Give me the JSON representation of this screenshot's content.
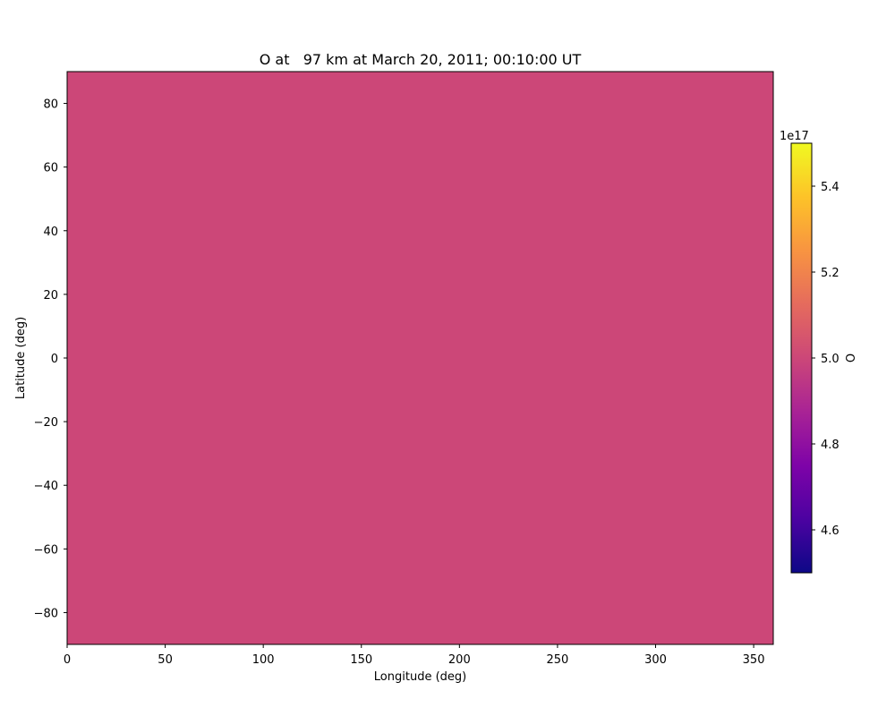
{
  "chart_data": {
    "type": "heatmap",
    "title": "O at   97 km at March 20, 2011; 00:10:00 UT",
    "xlabel": "Longitude (deg)",
    "ylabel": "Latitude (deg)",
    "xlim": [
      0,
      360
    ],
    "ylim": [
      -90,
      90
    ],
    "x_ticks": [
      0,
      50,
      100,
      150,
      200,
      250,
      300,
      350
    ],
    "y_ticks": [
      80,
      60,
      40,
      20,
      0,
      -20,
      -40,
      -60,
      -80
    ],
    "y_tick_labels": [
      "80",
      "60",
      "40",
      "20",
      "0",
      "−20",
      "−40",
      "−60",
      "−80"
    ],
    "field_value": 5e+17,
    "field_color": "#cc4778",
    "grid": false,
    "colorbar": {
      "label": "O",
      "colormap": "plasma",
      "range": [
        4.5,
        5.5
      ],
      "exponent_label": "1e17",
      "ticks": [
        5.4,
        5.2,
        5.0,
        4.8,
        4.6
      ],
      "tick_labels": [
        "5.4",
        "5.2",
        "5.0",
        "4.8",
        "4.6"
      ]
    }
  }
}
